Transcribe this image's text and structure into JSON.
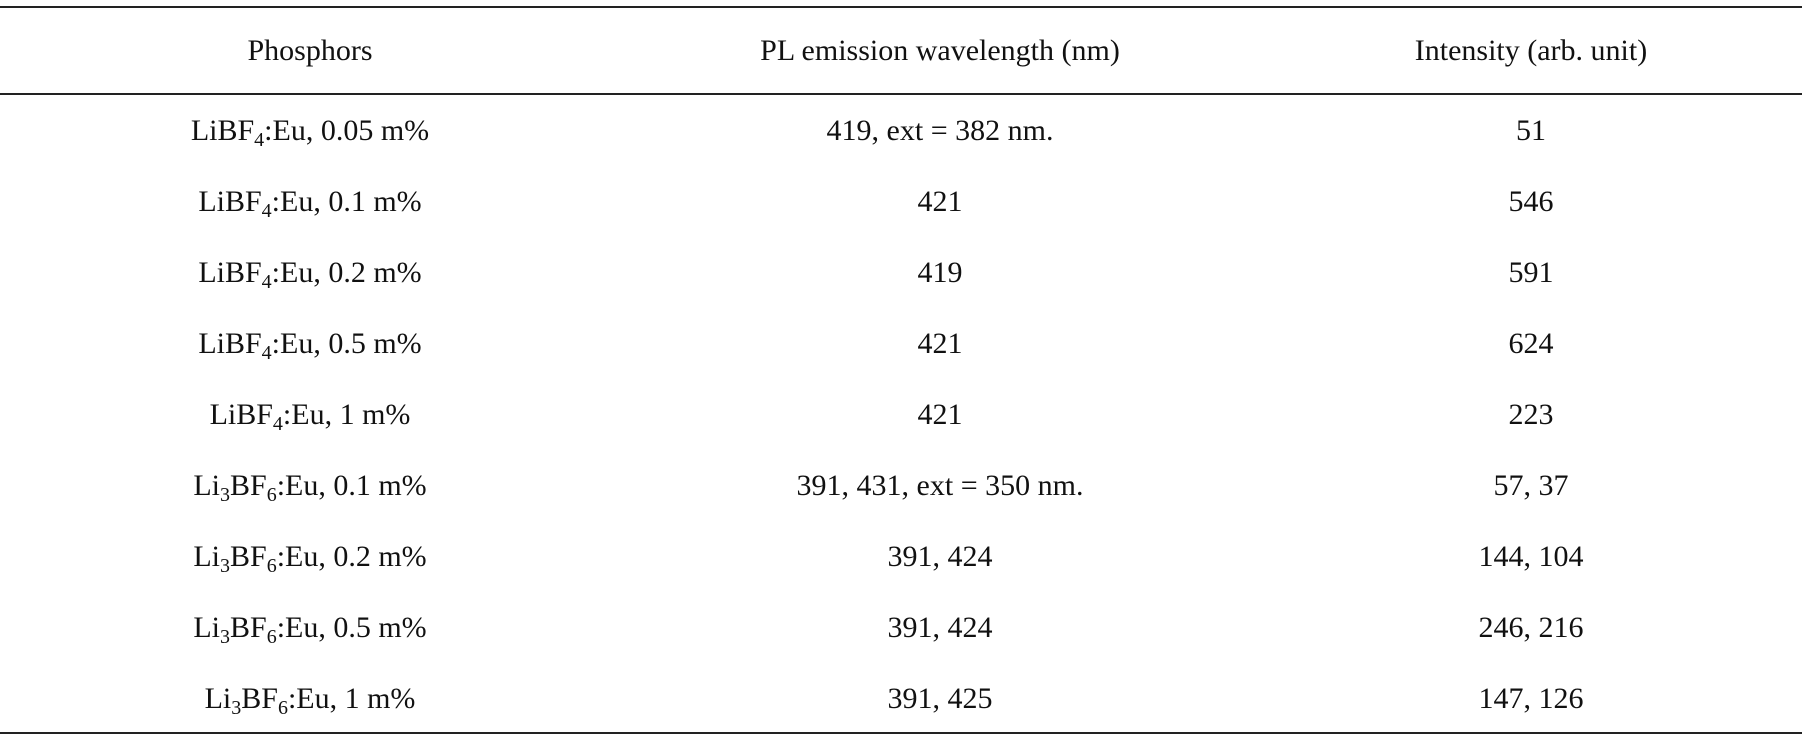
{
  "table": {
    "headers": [
      "Phosphors",
      "PL emission wavelength (nm)",
      "Intensity (arb. unit)"
    ],
    "rows": [
      {
        "phosphor": {
          "base": "LiBF",
          "sub": "4",
          "rest": ":Eu, 0.05 m%"
        },
        "wavelength": "419, ext = 382 nm.",
        "intensity": "51"
      },
      {
        "phosphor": {
          "base": "LiBF",
          "sub": "4",
          "rest": ":Eu, 0.1 m%"
        },
        "wavelength": "421",
        "intensity": "546"
      },
      {
        "phosphor": {
          "base": "LiBF",
          "sub": "4",
          "rest": ":Eu, 0.2 m%"
        },
        "wavelength": "419",
        "intensity": "591"
      },
      {
        "phosphor": {
          "base": "LiBF",
          "sub": "4",
          "rest": ":Eu, 0.5 m%"
        },
        "wavelength": "421",
        "intensity": "624"
      },
      {
        "phosphor": {
          "base": "LiBF",
          "sub": "4",
          "rest": ":Eu, 1 m%"
        },
        "wavelength": "421",
        "intensity": "223"
      },
      {
        "phosphor": {
          "base": "Li",
          "sub": "3",
          "mid": "BF",
          "sub2": "6",
          "rest": ":Eu, 0.1 m%"
        },
        "wavelength": "391, 431, ext = 350 nm.",
        "intensity": "57, 37"
      },
      {
        "phosphor": {
          "base": "Li",
          "sub": "3",
          "mid": "BF",
          "sub2": "6",
          "rest": ":Eu, 0.2 m%"
        },
        "wavelength": "391, 424",
        "intensity": "144, 104"
      },
      {
        "phosphor": {
          "base": "Li",
          "sub": "3",
          "mid": "BF",
          "sub2": "6",
          "rest": ":Eu, 0.5 m%"
        },
        "wavelength": "391, 424",
        "intensity": "246, 216"
      },
      {
        "phosphor": {
          "base": "Li",
          "sub": "3",
          "mid": "BF",
          "sub2": "6",
          "rest": ":Eu, 1 m%"
        },
        "wavelength": "391, 425",
        "intensity": "147, 126"
      }
    ]
  }
}
